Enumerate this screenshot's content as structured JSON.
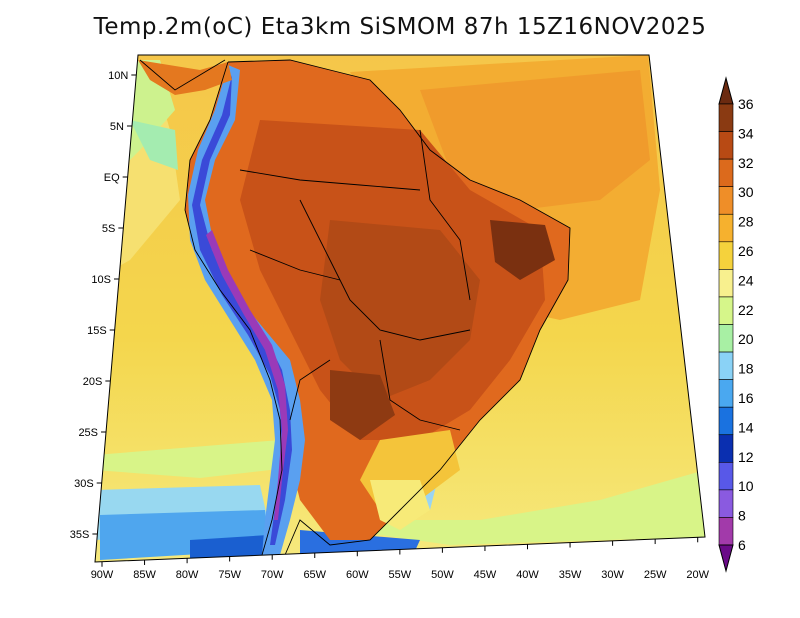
{
  "title": "Temp.2m(oC) Eta3km SiSMOM 87h 15Z16NOV2025",
  "map": {
    "lat_ticks": [
      "10N",
      "5N",
      "EQ",
      "5S",
      "10S",
      "15S",
      "20S",
      "25S",
      "30S",
      "35S"
    ],
    "lon_ticks": [
      "90W",
      "85W",
      "80W",
      "75W",
      "70W",
      "65W",
      "60W",
      "55W",
      "50W",
      "45W",
      "40W",
      "35W",
      "30W",
      "25W",
      "20W"
    ],
    "extent": {
      "lon_min": -90,
      "lon_max": -20,
      "lat_min": -38,
      "lat_max": 12
    }
  },
  "colorbar": {
    "labels": [
      "36",
      "34",
      "32",
      "30",
      "28",
      "26",
      "24",
      "22",
      "20",
      "18",
      "16",
      "14",
      "12",
      "10",
      "8",
      "6"
    ],
    "colors": [
      "#6b2a10",
      "#8a3a12",
      "#b84a14",
      "#dc6a1c",
      "#ef8e28",
      "#f6b12e",
      "#f5d23c",
      "#f8f08e",
      "#d6f68a",
      "#a8f0a4",
      "#8ad2f6",
      "#4aa8f0",
      "#1a72e0",
      "#0a2fb0",
      "#5858e8",
      "#8a5ae0",
      "#a23aaa",
      "#6a0a88"
    ]
  }
}
